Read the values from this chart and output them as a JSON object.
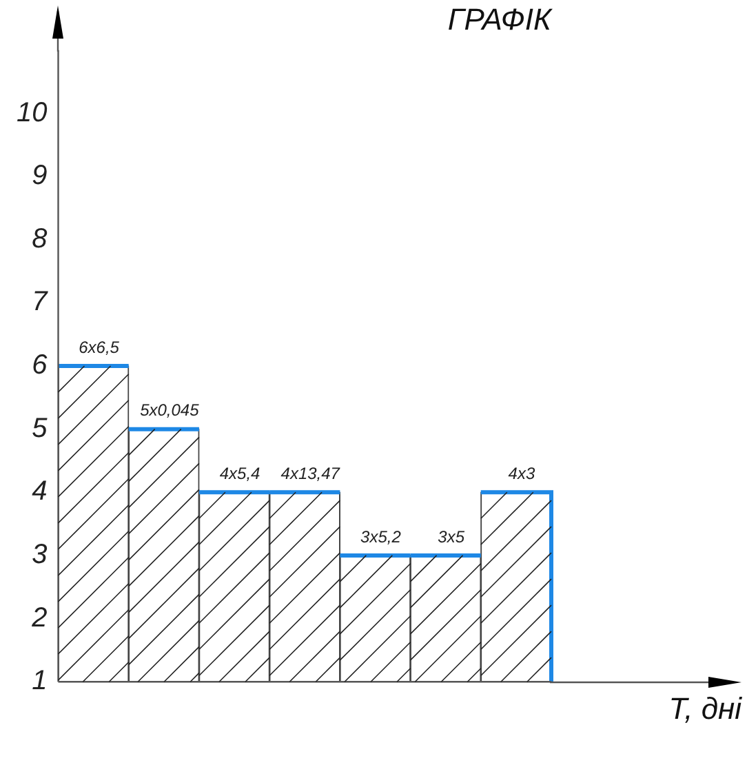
{
  "chart_data": {
    "type": "bar",
    "title": "ГРАФІК",
    "xlabel": "T, дні",
    "categories": [
      null,
      null,
      null,
      null,
      null,
      null,
      null
    ],
    "values": [
      6,
      5,
      4,
      4,
      3,
      3,
      4
    ],
    "value_labels": [
      "6x6,5",
      "5x0,045",
      "4x5,4",
      "4x13,47",
      "3x5,2",
      "3x5",
      "4x3"
    ],
    "color": "#ffffff",
    "ylim": [
      1,
      11
    ],
    "yticks": [
      1,
      2,
      3,
      4,
      5,
      6,
      7,
      8,
      9,
      10
    ],
    "grid": false,
    "legend": false
  }
}
